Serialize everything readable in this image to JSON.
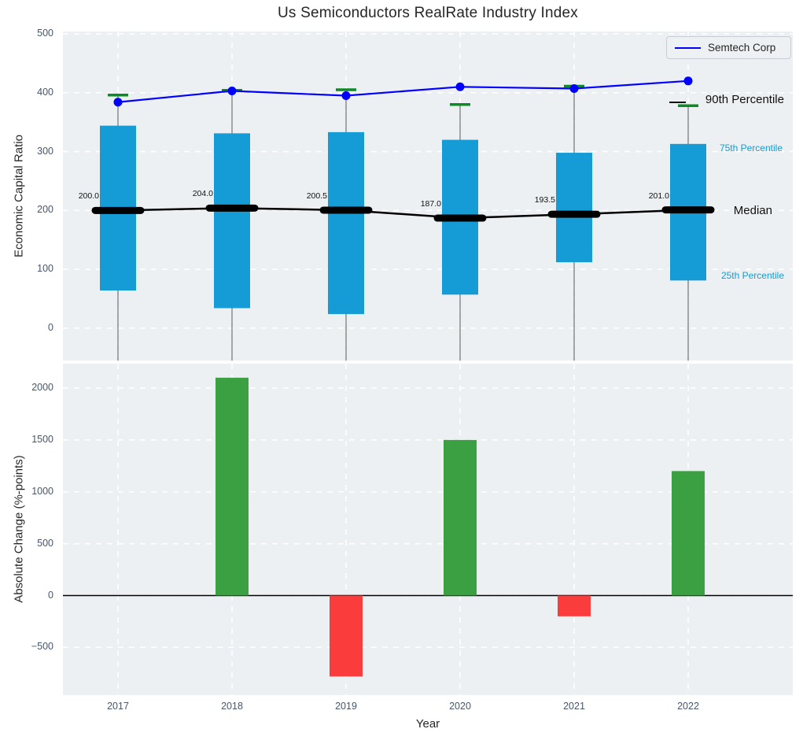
{
  "title": "Us Semiconductors RealRate Industry Index",
  "legend": {
    "label": "Semtech Corp"
  },
  "colors": {
    "panel_background": "#edf0f2",
    "grid": "#ffffff",
    "iqr_bar": "#159bd5",
    "p90_dash": "#0e8b28",
    "median": "#000000",
    "semtech_line": "#0000ff",
    "whisker": "#7a7a7a",
    "positive_bar": "#3ba042",
    "negative_bar": "#fb3c3c",
    "tick_text": "#46566b",
    "percentile_text": "#159bd5"
  },
  "chart_data": [
    {
      "type": "boxplot-summary",
      "panel": "top",
      "title": "Us Semiconductors RealRate Industry Index",
      "ylabel": "Economic Capital Ratio",
      "categories": [
        "2017",
        "2018",
        "2019",
        "2020",
        "2021",
        "2022"
      ],
      "yticks": [
        0,
        100,
        200,
        300,
        400,
        500
      ],
      "ylim": [
        -55,
        504
      ],
      "grid": true,
      "legend": {
        "label": "Semtech Corp",
        "position": "upper right"
      },
      "series": [
        {
          "name": "90th Percentile",
          "role": "p90",
          "color": "#0e8b28",
          "values": [
            396,
            404,
            405,
            380,
            411,
            378
          ]
        },
        {
          "name": "75th Percentile",
          "role": "q75",
          "color": "#159bd5",
          "values": [
            344,
            331,
            333,
            320,
            298,
            313
          ]
        },
        {
          "name": "Median",
          "role": "median",
          "color": "#000000",
          "values": [
            200.0,
            204.0,
            200.5,
            187.0,
            193.5,
            201.0
          ]
        },
        {
          "name": "25th Percentile",
          "role": "q25",
          "color": "#159bd5",
          "values": [
            64,
            34,
            24,
            57,
            112,
            81
          ]
        },
        {
          "name": "Semtech Corp",
          "role": "line",
          "color": "#0000ff",
          "values": [
            384,
            403,
            395,
            410,
            407,
            420
          ]
        }
      ],
      "median_labels": [
        "200.0",
        "204.0",
        "200.5",
        "187.0",
        "193.5",
        "201.0"
      ],
      "side_labels": [
        "90th Percentile",
        "75th Percentile",
        "Median",
        "25th Percentile"
      ]
    },
    {
      "type": "bar",
      "panel": "bottom",
      "ylabel": "Absolute Change (%-points)",
      "xlabel": "Year",
      "categories": [
        "2017",
        "2018",
        "2019",
        "2020",
        "2021",
        "2022"
      ],
      "values": [
        0,
        2100,
        -780,
        1500,
        -200,
        1200
      ],
      "yticks": [
        -500,
        0,
        500,
        1000,
        1500,
        2000
      ],
      "ylim": [
        -960,
        2235
      ],
      "grid": true,
      "positive_color": "#3ba042",
      "negative_color": "#fb3c3c"
    }
  ]
}
